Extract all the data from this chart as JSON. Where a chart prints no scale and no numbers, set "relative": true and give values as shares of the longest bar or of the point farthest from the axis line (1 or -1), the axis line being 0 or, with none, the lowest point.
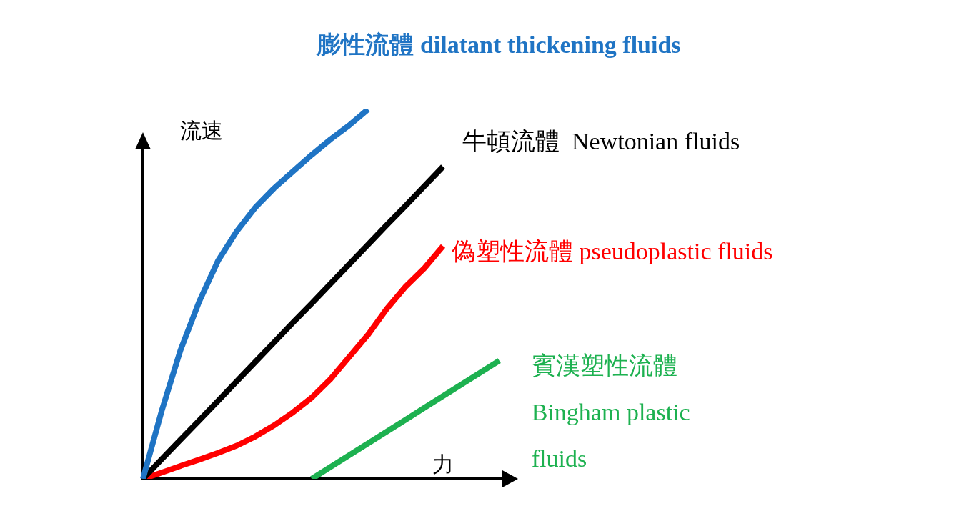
{
  "chart_data": {
    "type": "line",
    "relative": true,
    "xlabel": "力",
    "ylabel": "流速",
    "tick_labels": false,
    "legend": false,
    "marker": "none",
    "line_style": "solid",
    "categories": [
      null,
      null,
      null,
      null,
      null,
      null,
      null,
      null,
      null,
      null,
      null,
      null,
      null,
      null,
      null,
      null,
      null,
      null,
      null,
      null,
      null
    ],
    "series": [
      {
        "name": "膨性流體 dilatant thickening fluids",
        "color": "#1f74c4",
        "values": [
          0,
          0.184,
          0.348,
          0.48,
          0.59,
          0.67,
          0.735,
          0.787,
          0.832,
          0.877,
          0.919,
          0.957,
          1,
          null,
          null,
          null,
          null,
          null,
          null,
          null,
          null
        ]
      },
      {
        "name": "牛頓流體  Newtonian fluids",
        "color": "#000000",
        "values": [
          0,
          0.053,
          0.106,
          0.158,
          0.211,
          0.264,
          0.317,
          0.37,
          0.423,
          0.475,
          0.528,
          0.581,
          0.634,
          0.687,
          0.739,
          0.792,
          0.845,
          null,
          null,
          null,
          null
        ]
      },
      {
        "name": "偽塑性流體 pseudoplastic fluids",
        "color": "#ff0000",
        "values": [
          0,
          0.017,
          0.035,
          0.052,
          0.07,
          0.09,
          0.115,
          0.145,
          0.18,
          0.22,
          0.27,
          0.33,
          0.39,
          0.46,
          0.52,
          0.57,
          0.63,
          null,
          null,
          null,
          null
        ]
      },
      {
        "name": "賓漢塑性流體 Bingham plastic fluids",
        "color": "#1db150",
        "values": [
          null,
          null,
          null,
          null,
          null,
          null,
          null,
          null,
          null,
          0,
          0.032,
          0.064,
          0.096,
          0.128,
          0.16,
          0.192,
          0.224,
          0.256,
          0.288,
          0.32,
          null
        ]
      }
    ]
  }
}
